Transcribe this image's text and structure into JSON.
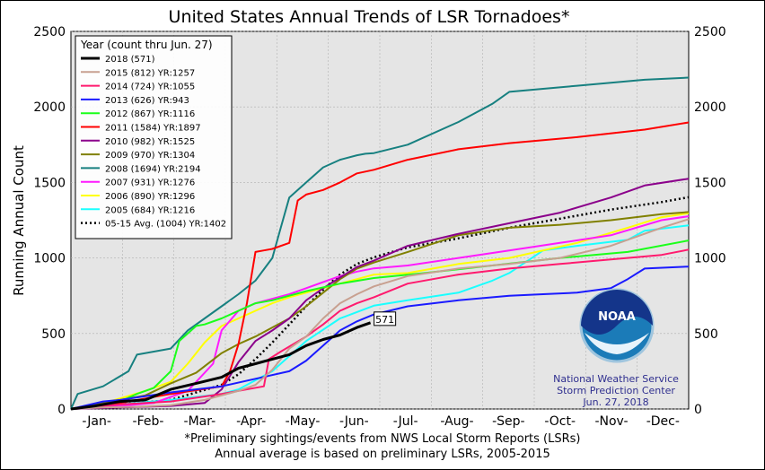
{
  "chart_data": {
    "type": "line",
    "title": "United States Annual Trends of LSR Tornadoes*",
    "ylabel": "Running Annual Count",
    "xlabel": "",
    "ylim": [
      0,
      2500
    ],
    "y_ticks": [
      0,
      500,
      1000,
      1500,
      2000,
      2500
    ],
    "x_tick_labels": [
      "-Jan-",
      "-Feb-",
      "-Mar-",
      "-Apr-",
      "-May-",
      "-Jun-",
      "-Jul-",
      "-Aug-",
      "-Sep-",
      "-Oct-",
      "-Nov-",
      "-Dec-"
    ],
    "x_unit": "day of year",
    "xlim": [
      1,
      366
    ],
    "grid": true,
    "legend_title": "Year (count thru Jun. 27)",
    "legend_position": "top-left",
    "annotation": "571",
    "series": [
      {
        "name": "2018 (571)",
        "color": "#000000",
        "width": 3,
        "dash": "",
        "x": [
          1,
          15,
          30,
          45,
          60,
          75,
          90,
          100,
          110,
          120,
          130,
          140,
          150,
          160,
          170,
          178
        ],
        "values": [
          0,
          20,
          50,
          60,
          130,
          170,
          210,
          270,
          300,
          330,
          360,
          420,
          460,
          490,
          540,
          571
        ]
      },
      {
        "name": "2015 (812) YR:1257",
        "color": "#c8a090",
        "width": 2,
        "dash": "",
        "x": [
          1,
          20,
          40,
          60,
          80,
          100,
          110,
          120,
          130,
          140,
          150,
          160,
          170,
          180,
          200,
          230,
          260,
          290,
          320,
          350,
          366
        ],
        "values": [
          0,
          10,
          15,
          25,
          60,
          120,
          160,
          260,
          400,
          480,
          600,
          700,
          760,
          812,
          880,
          930,
          960,
          1000,
          1080,
          1200,
          1257
        ]
      },
      {
        "name": "2014 (724) YR:1055",
        "color": "#ff1a6e",
        "width": 2,
        "dash": "",
        "x": [
          1,
          30,
          60,
          90,
          115,
          118,
          125,
          140,
          150,
          160,
          170,
          180,
          200,
          230,
          260,
          290,
          320,
          350,
          366
        ],
        "values": [
          0,
          30,
          50,
          100,
          150,
          330,
          380,
          480,
          560,
          650,
          700,
          740,
          830,
          890,
          930,
          960,
          990,
          1020,
          1055
        ]
      },
      {
        "name": "2013 (626) YR:943",
        "color": "#1a1aff",
        "width": 2,
        "dash": "",
        "x": [
          1,
          20,
          30,
          60,
          90,
          110,
          130,
          140,
          150,
          160,
          170,
          180,
          200,
          230,
          260,
          280,
          300,
          320,
          330,
          340,
          366
        ],
        "values": [
          0,
          50,
          60,
          110,
          150,
          200,
          250,
          320,
          420,
          520,
          580,
          626,
          680,
          720,
          750,
          760,
          770,
          800,
          860,
          930,
          943
        ]
      },
      {
        "name": "2012 (867) YR:1116",
        "color": "#1aff1a",
        "width": 2,
        "dash": "",
        "x": [
          1,
          20,
          30,
          40,
          50,
          60,
          65,
          75,
          80,
          90,
          100,
          110,
          120,
          140,
          160,
          180,
          210,
          250,
          290,
          330,
          366
        ],
        "values": [
          0,
          30,
          50,
          100,
          140,
          250,
          450,
          550,
          560,
          600,
          650,
          700,
          720,
          780,
          830,
          867,
          900,
          950,
          1000,
          1040,
          1116
        ]
      },
      {
        "name": "2011 (1584) YR:1897",
        "color": "#ff0000",
        "width": 2,
        "dash": "",
        "x": [
          1,
          30,
          60,
          90,
          95,
          100,
          105,
          110,
          115,
          120,
          130,
          135,
          140,
          150,
          160,
          170,
          180,
          200,
          230,
          260,
          300,
          340,
          366
        ],
        "values": [
          0,
          40,
          100,
          150,
          250,
          430,
          700,
          1040,
          1050,
          1060,
          1100,
          1380,
          1420,
          1450,
          1500,
          1560,
          1584,
          1650,
          1720,
          1760,
          1800,
          1850,
          1897
        ]
      },
      {
        "name": "2010 (982) YR:1525",
        "color": "#8b008b",
        "width": 2,
        "dash": "",
        "x": [
          1,
          30,
          60,
          80,
          90,
          100,
          110,
          120,
          130,
          140,
          150,
          160,
          170,
          180,
          200,
          230,
          260,
          290,
          320,
          340,
          366
        ],
        "values": [
          0,
          10,
          20,
          40,
          130,
          310,
          450,
          520,
          600,
          720,
          800,
          870,
          940,
          982,
          1080,
          1160,
          1230,
          1300,
          1400,
          1480,
          1525
        ]
      },
      {
        "name": "2009 (970) YR:1304",
        "color": "#808000",
        "width": 2,
        "dash": "",
        "x": [
          1,
          15,
          30,
          45,
          60,
          75,
          90,
          100,
          110,
          120,
          130,
          140,
          150,
          160,
          170,
          180,
          200,
          230,
          260,
          290,
          320,
          350,
          366
        ],
        "values": [
          0,
          30,
          60,
          90,
          170,
          240,
          370,
          430,
          480,
          540,
          600,
          680,
          770,
          860,
          930,
          970,
          1040,
          1150,
          1200,
          1220,
          1250,
          1290,
          1304
        ]
      },
      {
        "name": "2008 (1694) YR:2194",
        "color": "#178080",
        "width": 2,
        "dash": "",
        "x": [
          1,
          5,
          20,
          35,
          40,
          60,
          70,
          80,
          90,
          100,
          110,
          120,
          125,
          130,
          140,
          150,
          160,
          170,
          175,
          180,
          200,
          230,
          250,
          260,
          280,
          300,
          320,
          340,
          366
        ],
        "values": [
          0,
          100,
          150,
          250,
          360,
          400,
          520,
          600,
          680,
          760,
          850,
          1000,
          1200,
          1400,
          1500,
          1600,
          1650,
          1680,
          1690,
          1694,
          1750,
          1900,
          2020,
          2100,
          2120,
          2140,
          2160,
          2180,
          2194
        ]
      },
      {
        "name": "2007 (931) YR:1276",
        "color": "#ff1aff",
        "width": 2,
        "dash": "",
        "x": [
          1,
          30,
          50,
          60,
          70,
          85,
          90,
          100,
          110,
          120,
          130,
          140,
          150,
          160,
          170,
          180,
          200,
          230,
          260,
          290,
          320,
          350,
          366
        ],
        "values": [
          0,
          20,
          40,
          80,
          120,
          300,
          520,
          650,
          700,
          730,
          760,
          800,
          840,
          880,
          910,
          931,
          950,
          1000,
          1050,
          1100,
          1150,
          1250,
          1276
        ]
      },
      {
        "name": "2006 (890) YR:1296",
        "color": "#ffff00",
        "width": 2,
        "dash": "",
        "x": [
          1,
          20,
          30,
          45,
          60,
          70,
          80,
          90,
          100,
          110,
          120,
          130,
          140,
          150,
          160,
          170,
          180,
          200,
          230,
          260,
          300,
          330,
          350,
          366
        ],
        "values": [
          0,
          40,
          70,
          120,
          180,
          300,
          440,
          550,
          600,
          650,
          700,
          740,
          770,
          800,
          830,
          860,
          890,
          900,
          960,
          1000,
          1100,
          1200,
          1270,
          1296
        ]
      },
      {
        "name": "2005 (684) YR:1216",
        "color": "#1affff",
        "width": 2,
        "dash": "",
        "x": [
          1,
          30,
          60,
          90,
          100,
          120,
          140,
          160,
          180,
          200,
          230,
          250,
          260,
          280,
          300,
          330,
          340,
          366
        ],
        "values": [
          0,
          30,
          60,
          100,
          130,
          250,
          450,
          600,
          684,
          720,
          770,
          850,
          900,
          1050,
          1080,
          1120,
          1180,
          1216
        ]
      },
      {
        "name": "05-15 Avg. (1004) YR:1402",
        "color": "#000000",
        "width": 2.5,
        "dash": "2,3",
        "x": [
          1,
          30,
          60,
          90,
          100,
          110,
          120,
          130,
          140,
          150,
          160,
          170,
          180,
          200,
          230,
          260,
          290,
          320,
          350,
          366
        ],
        "values": [
          0,
          30,
          60,
          160,
          230,
          330,
          440,
          560,
          680,
          790,
          890,
          960,
          1004,
          1070,
          1130,
          1200,
          1260,
          1320,
          1370,
          1402
        ]
      }
    ],
    "footnote_1": "*Preliminary sightings/events from NWS Local Storm Reports (LSRs)",
    "footnote_2": "Annual average is based on preliminary LSRs, 2005-2015"
  },
  "logo": {
    "text": "NOAA",
    "agency": "National Weather Service",
    "center": "Storm Prediction Center",
    "date": "Jun. 27, 2018"
  }
}
